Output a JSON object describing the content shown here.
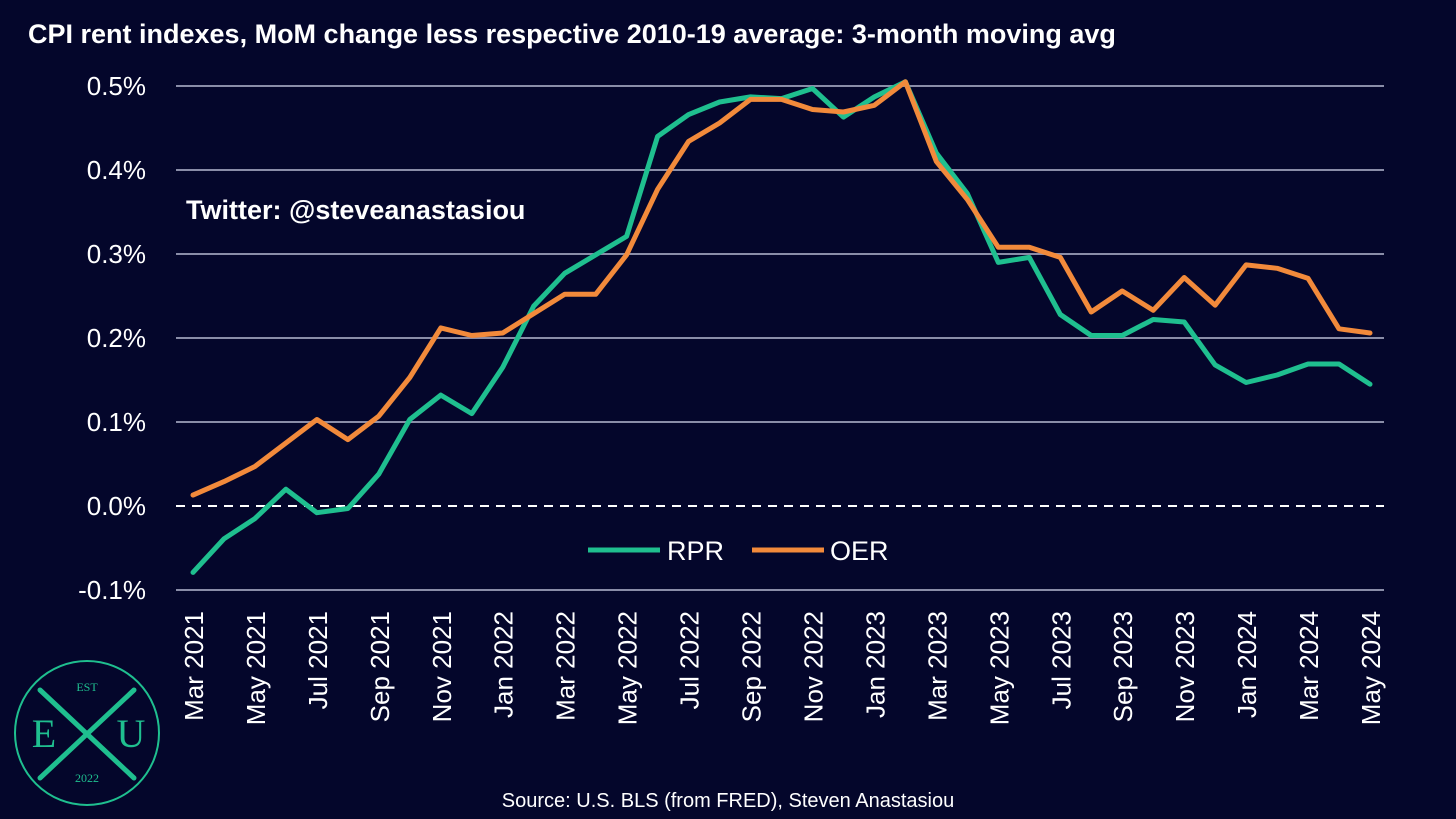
{
  "chart_data": {
    "type": "line",
    "title": "CPI rent indexes, MoM change less respective 2010-19 average: 3-month moving avg",
    "ylim": [
      -0.1,
      0.5
    ],
    "yticks": [
      "0.5%",
      "0.4%",
      "0.3%",
      "0.2%",
      "0.1%",
      "0.0%",
      "-0.1%"
    ],
    "ytick_values": [
      0.5,
      0.4,
      0.3,
      0.2,
      0.1,
      0.0,
      -0.1
    ],
    "zero_line": "dashed",
    "grid": true,
    "legend_position": "bottom-center",
    "x": [
      "Mar 2021",
      "Apr 2021",
      "May 2021",
      "Jun 2021",
      "Jul 2021",
      "Aug 2021",
      "Sep 2021",
      "Oct 2021",
      "Nov 2021",
      "Dec 2021",
      "Jan 2022",
      "Feb 2022",
      "Mar 2022",
      "Apr 2022",
      "May 2022",
      "Jun 2022",
      "Jul 2022",
      "Aug 2022",
      "Sep 2022",
      "Oct 2022",
      "Nov 2022",
      "Dec 2022",
      "Jan 2023",
      "Feb 2023",
      "Mar 2023",
      "Apr 2023",
      "May 2023",
      "Jun 2023",
      "Jul 2023",
      "Aug 2023",
      "Sep 2023",
      "Oct 2023",
      "Nov 2023",
      "Dec 2023",
      "Jan 2024",
      "Feb 2024",
      "Mar 2024",
      "Apr 2024",
      "May 2024"
    ],
    "xtick_labels": [
      "Mar 2021",
      "May 2021",
      "Jul 2021",
      "Sep 2021",
      "Nov 2021",
      "Jan 2022",
      "Mar 2022",
      "May 2022",
      "Jul 2022",
      "Sep 2022",
      "Nov 2022",
      "Jan 2023",
      "Mar 2023",
      "May 2023",
      "Jul 2023",
      "Sep 2023",
      "Nov 2023",
      "Jan 2024",
      "Mar 2024",
      "May 2024"
    ],
    "series": [
      {
        "name": "RPR",
        "color": "#1fbf8f",
        "values": [
          -0.079,
          -0.039,
          -0.015,
          0.02,
          -0.008,
          -0.003,
          0.038,
          0.103,
          0.132,
          0.11,
          0.165,
          0.238,
          0.277,
          0.299,
          0.321,
          0.44,
          0.466,
          0.481,
          0.487,
          0.485,
          0.497,
          0.463,
          0.487,
          0.505,
          0.42,
          0.372,
          0.29,
          0.296,
          0.228,
          0.203,
          0.203,
          0.222,
          0.219,
          0.168,
          0.147,
          0.156,
          0.169,
          0.169,
          0.145
        ]
      },
      {
        "name": "OER",
        "color": "#f28a3b",
        "values": [
          0.013,
          0.029,
          0.047,
          0.075,
          0.103,
          0.079,
          0.107,
          0.153,
          0.212,
          0.203,
          0.206,
          0.229,
          0.252,
          0.252,
          0.299,
          0.377,
          0.434,
          0.456,
          0.484,
          0.484,
          0.472,
          0.469,
          0.477,
          0.505,
          0.41,
          0.365,
          0.308,
          0.308,
          0.296,
          0.231,
          0.256,
          0.233,
          0.272,
          0.239,
          0.287,
          0.283,
          0.271,
          0.211,
          0.206
        ]
      }
    ]
  },
  "watermark": "Twitter: @steveanastasiou",
  "source": "Source: U.S. BLS (from FRED), Steven Anastasiou",
  "logo": {
    "top": "EST",
    "left": "E",
    "right": "U",
    "bottom": "2022",
    "color": "#1fbf8f"
  }
}
